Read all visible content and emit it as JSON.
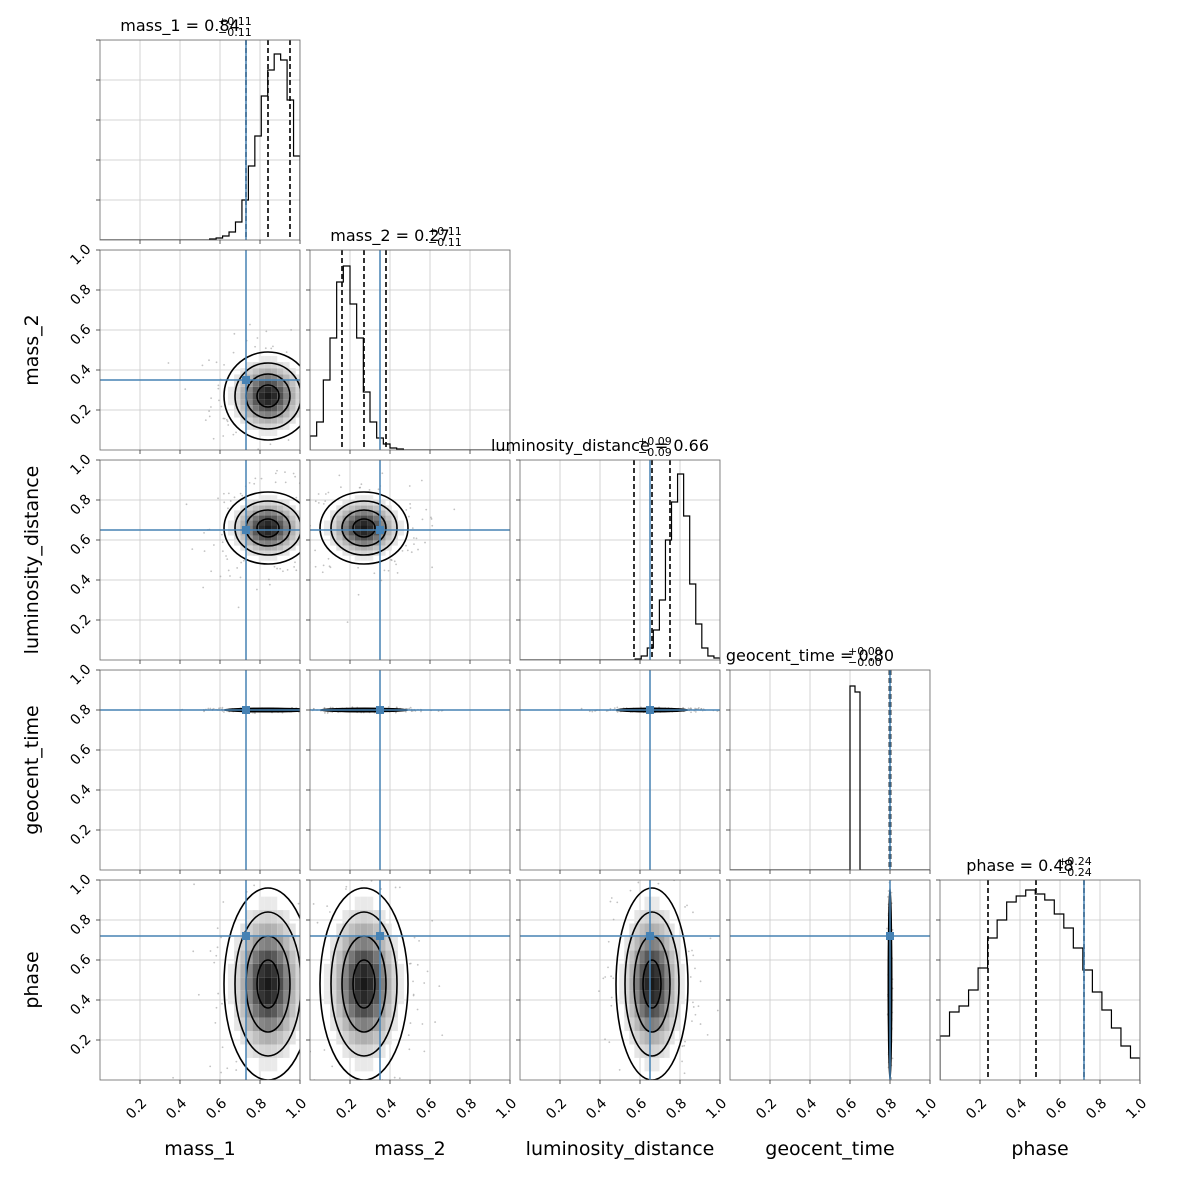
{
  "chart_data": {
    "type": "corner",
    "parameters": [
      {
        "name": "mass_1",
        "median": "0.84",
        "plus": "+0.11",
        "minus": "−0.11",
        "truth": 0.73,
        "q": [
          0.73,
          0.84,
          0.95
        ],
        "hist": [
          0,
          0,
          0,
          0,
          0,
          0,
          0,
          0,
          0,
          0,
          0,
          0,
          0,
          0,
          0,
          0,
          0,
          0.005,
          0.01,
          0.02,
          0.04,
          0.09,
          0.2,
          0.37,
          0.52,
          0.72,
          0.85,
          0.93,
          0.9,
          0.7,
          0.42
        ]
      },
      {
        "name": "mass_2",
        "median": "0.27",
        "plus": "+0.11",
        "minus": "−0.11",
        "truth": 0.35,
        "q": [
          0.16,
          0.27,
          0.38
        ],
        "hist": [
          0.07,
          0.14,
          0.35,
          0.56,
          0.84,
          0.92,
          0.73,
          0.56,
          0.29,
          0.14,
          0.06,
          0.03,
          0.01,
          0.005,
          0,
          0,
          0,
          0,
          0,
          0,
          0,
          0,
          0,
          0,
          0,
          0,
          0,
          0,
          0,
          0
        ]
      },
      {
        "name": "luminosity_distance",
        "median": "0.66",
        "plus": "+0.09",
        "minus": "−0.09",
        "truth": 0.65,
        "q": [
          0.57,
          0.66,
          0.75
        ],
        "hist": [
          0,
          0,
          0,
          0,
          0,
          0,
          0,
          0,
          0,
          0,
          0,
          0,
          0,
          0,
          0,
          0,
          0,
          0,
          0,
          0.005,
          0.02,
          0.06,
          0.15,
          0.3,
          0.6,
          0.79,
          0.93,
          0.72,
          0.38,
          0.18,
          0.06,
          0.02,
          0.01
        ]
      },
      {
        "name": "geocent_time",
        "median": "0.80",
        "plus": "+0.00",
        "minus": "−0.00",
        "truth": 0.8,
        "q": [
          0.797,
          0.8,
          0.803
        ],
        "hist": [
          0,
          0,
          0,
          0,
          0,
          0,
          0,
          0,
          0,
          0,
          0,
          0,
          0,
          0,
          0,
          0,
          0,
          0,
          0,
          0,
          0,
          0,
          0,
          0,
          0.92,
          0.89,
          0,
          0,
          0,
          0,
          0,
          0,
          0,
          0,
          0,
          0,
          0,
          0,
          0,
          0
        ]
      },
      {
        "name": "phase",
        "median": "0.48",
        "plus": "+0.24",
        "minus": "−0.24",
        "truth": 0.72,
        "q": [
          0.24,
          0.48,
          0.72
        ],
        "hist": [
          0.22,
          0.34,
          0.37,
          0.45,
          0.56,
          0.71,
          0.8,
          0.89,
          0.92,
          0.95,
          0.93,
          0.9,
          0.83,
          0.76,
          0.66,
          0.55,
          0.44,
          0.35,
          0.26,
          0.17,
          0.11
        ]
      }
    ],
    "axis_range": [
      0,
      1
    ],
    "tick_labels": [
      "0.2",
      "0.4",
      "0.6",
      "0.8",
      "1.0"
    ],
    "truth_color": "#4682b4",
    "grid": true
  }
}
